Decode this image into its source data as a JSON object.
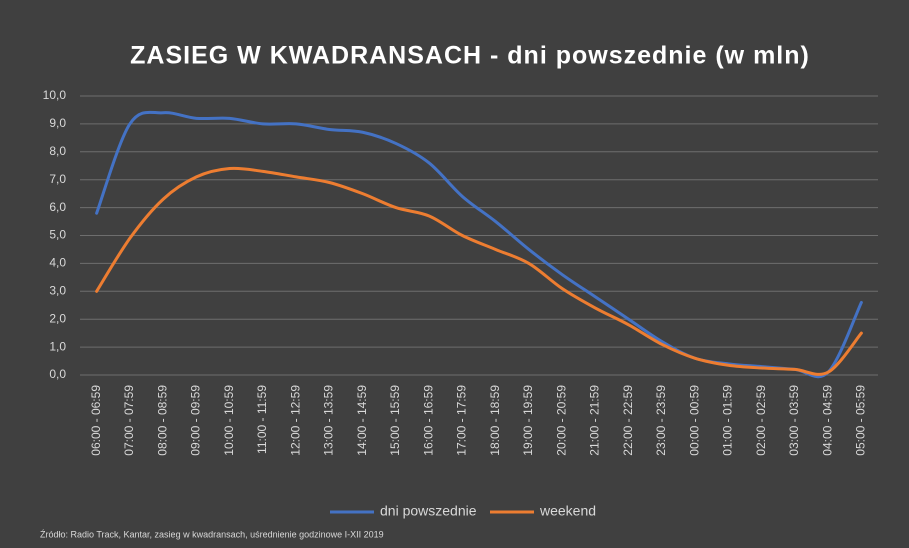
{
  "chart_data": {
    "type": "line",
    "title": "ZASIEG  W KWADRANSACH  - dni powszednie  (w mln)",
    "source": "Źródło: Radio Track, Kantar, zasieg w kwadransach, uśrednienie godzinowe I-XII 2019",
    "categories": [
      "06:00 - 06:59",
      "07:00 - 07:59",
      "08:00 - 08:59",
      "09:00 - 09:59",
      "10:00 - 10:59",
      "11:00 - 11:59",
      "12:00 - 12:59",
      "13:00 - 13:59",
      "14:00 - 14:59",
      "15:00 - 15:59",
      "16:00 - 16:59",
      "17:00 - 17:59",
      "18:00 - 18:59",
      "19:00 - 19:59",
      "20:00 - 20:59",
      "21:00 - 21:59",
      "22:00 - 22:59",
      "23:00 - 23:59",
      "00:00 - 00:59",
      "01:00 - 01:59",
      "02:00 - 02:59",
      "03:00 - 03:59",
      "04:00 - 04:59",
      "05:00 - 05:59"
    ],
    "series": [
      {
        "name": "dni powszednie",
        "color": "#4472c4",
        "values": [
          5.8,
          9.0,
          9.4,
          9.2,
          9.2,
          9.0,
          9.0,
          8.8,
          8.7,
          8.3,
          7.6,
          6.4,
          5.5,
          4.5,
          3.6,
          2.8,
          2.0,
          1.2,
          0.6,
          0.4,
          0.3,
          0.2,
          0.1,
          2.6
        ]
      },
      {
        "name": "weekend",
        "color": "#ed7d31",
        "values": [
          3.0,
          4.9,
          6.3,
          7.1,
          7.4,
          7.3,
          7.1,
          6.9,
          6.5,
          6.0,
          5.7,
          5.0,
          4.5,
          4.0,
          3.1,
          2.4,
          1.8,
          1.1,
          0.6,
          0.35,
          0.25,
          0.2,
          0.1,
          1.5
        ]
      }
    ],
    "ylim": [
      0,
      10
    ],
    "yticks": [
      {
        "value": 0,
        "label": "0,0"
      },
      {
        "value": 1,
        "label": "1,0"
      },
      {
        "value": 2,
        "label": "2,0"
      },
      {
        "value": 3,
        "label": "3,0"
      },
      {
        "value": 4,
        "label": "4,0"
      },
      {
        "value": 5,
        "label": "5,0"
      },
      {
        "value": 6,
        "label": "6,0"
      },
      {
        "value": 7,
        "label": "7,0"
      },
      {
        "value": 8,
        "label": "8,0"
      },
      {
        "value": 9,
        "label": "9,0"
      },
      {
        "value": 10,
        "label": "10,0"
      }
    ],
    "grid": true,
    "legend": "bottom"
  }
}
